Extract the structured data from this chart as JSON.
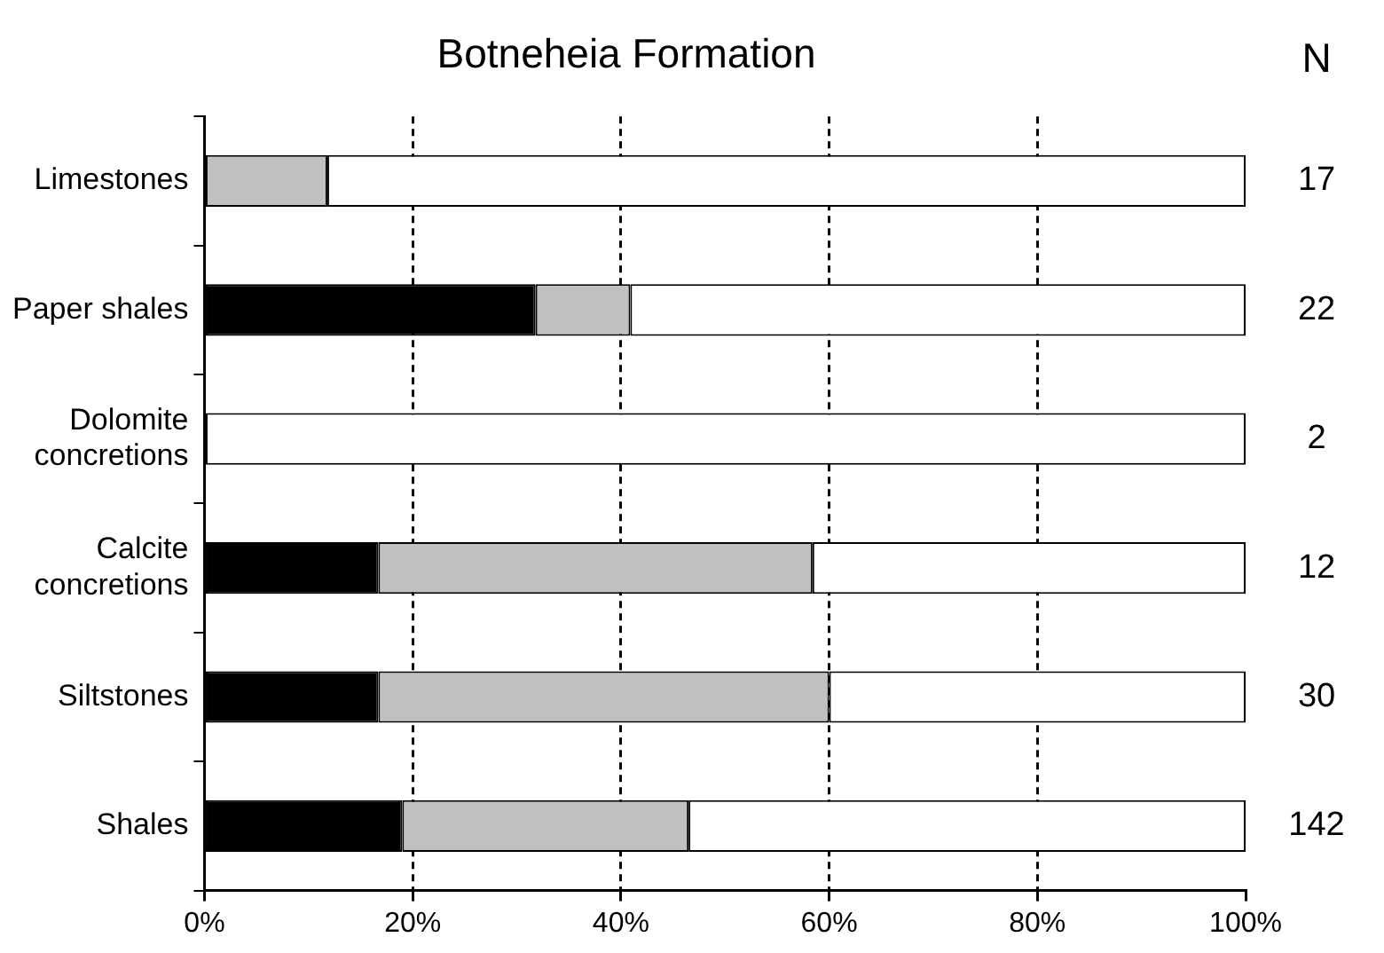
{
  "chart_data": {
    "type": "bar",
    "orientation": "horizontal",
    "stacked": true,
    "title": "Botneheia Formation",
    "categories": [
      "Limestones",
      "Paper shales",
      "Dolomite concretions",
      "Calcite concretions",
      "Siltstones",
      "Shales"
    ],
    "series": [
      {
        "color": "#000000",
        "values": [
          0,
          31.8,
          0,
          16.7,
          16.7,
          19.0
        ]
      },
      {
        "color": "#c0c0c0",
        "values": [
          11.8,
          9.1,
          0,
          41.7,
          43.3,
          27.5
        ]
      },
      {
        "color": "#ffffff",
        "values": [
          88.2,
          59.1,
          100,
          41.6,
          40.0,
          53.5
        ]
      }
    ],
    "xlim": [
      0,
      100
    ],
    "xticks": [
      {
        "value": 0,
        "label": "0%"
      },
      {
        "value": 20,
        "label": "20%"
      },
      {
        "value": 40,
        "label": "40%"
      },
      {
        "value": 60,
        "label": "60%"
      },
      {
        "value": 80,
        "label": "80%"
      },
      {
        "value": 100,
        "label": "100%"
      }
    ],
    "grid": "x",
    "line_style": "dashed",
    "legend": false,
    "annotations": [
      "N",
      "17",
      "22",
      "2",
      "12",
      "30",
      "142"
    ]
  }
}
